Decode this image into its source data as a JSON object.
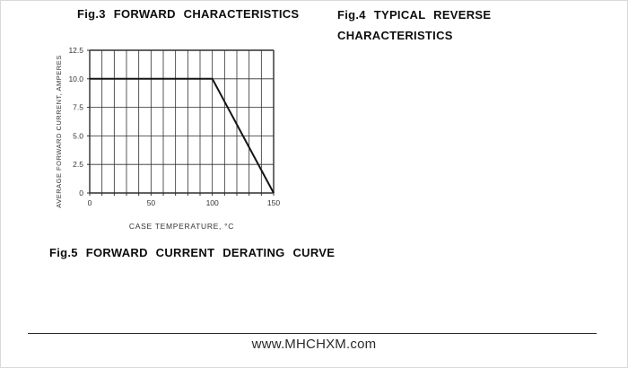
{
  "titles": {
    "fig3": "Fig.3 FORWARD CHARACTERISTICS",
    "fig4_line1": "Fig.4 TYPICAL REVERSE",
    "fig4_line2": "CHARACTERISTICS",
    "fig5": "Fig.5 FORWARD CURRENT DERATING CURVE"
  },
  "footer": {
    "url": "www.MHCHXM.com"
  },
  "chart_data": {
    "type": "line",
    "title": "Fig.5 FORWARD CURRENT DERATING CURVE",
    "xlabel": "CASE TEMPERATURE, °C",
    "ylabel": "AVERAGE FORWARD CURRENT, AMPERES",
    "xlim": [
      0,
      150
    ],
    "ylim": [
      0,
      12.5
    ],
    "x_grid_step": 10,
    "y_grid_step": 2.5,
    "grid": true,
    "legend": false,
    "x_ticks": [
      0,
      50,
      100,
      150
    ],
    "x_tick_labels": [
      "0",
      "50",
      "100",
      "150"
    ],
    "y_ticks": [
      0,
      2.5,
      5,
      7.5,
      10,
      12.5
    ],
    "y_tick_labels": [
      "0",
      "2.5",
      "5.0",
      "7.5",
      "10.0",
      "12.5"
    ],
    "series": [
      {
        "name": "forward-current-derating",
        "points": [
          [
            0,
            10.0
          ],
          [
            100,
            10.0
          ],
          [
            150,
            0
          ]
        ]
      }
    ],
    "line_color": "#151515",
    "grid_color": "#2e2e2e",
    "text_color": "#333333",
    "background": "#ffffff"
  }
}
